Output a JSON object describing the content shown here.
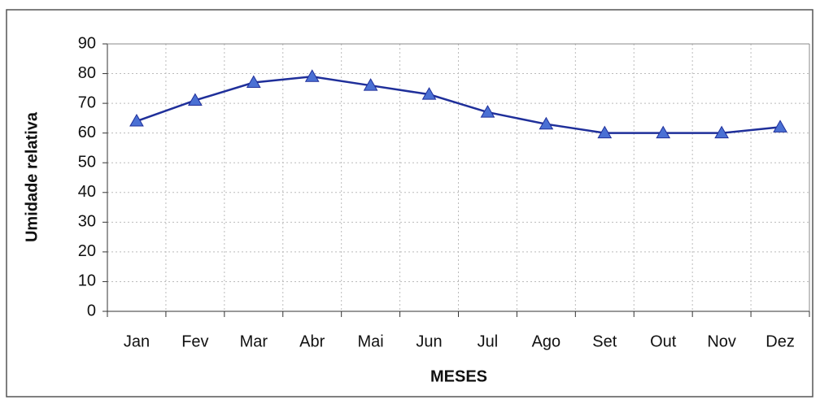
{
  "chart_data": {
    "type": "line",
    "x_label": "MESES",
    "y_label": "Umidade relativa",
    "categories": [
      "Jan",
      "Fev",
      "Mar",
      "Abr",
      "Mai",
      "Jun",
      "Jul",
      "Ago",
      "Set",
      "Out",
      "Nov",
      "Dez"
    ],
    "series": [
      {
        "name": "Umidade relativa",
        "color": "#1f2f9a",
        "marker_color": "#4a70d4",
        "values": [
          64,
          71,
          77,
          79,
          76,
          73,
          67,
          63,
          60,
          60,
          60,
          62
        ]
      }
    ],
    "ylim": [
      0,
      90
    ],
    "yticks": [
      0,
      10,
      20,
      30,
      40,
      50,
      60,
      70,
      80,
      90
    ],
    "grid": true
  }
}
